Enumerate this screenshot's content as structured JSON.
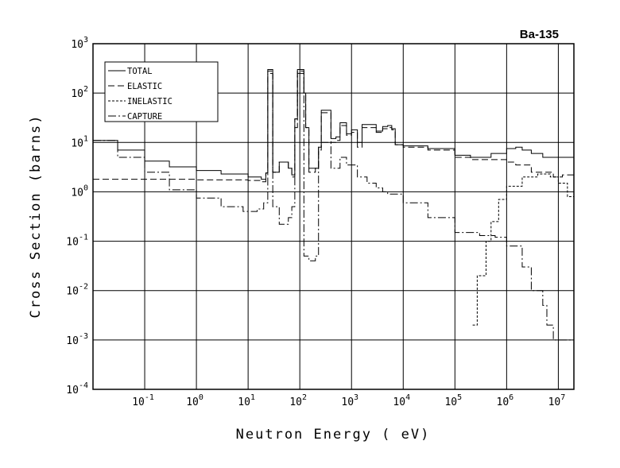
{
  "chart_data": {
    "type": "line",
    "title": "Ba-135",
    "xlabel": "Neutron Energy ( eV)",
    "ylabel": "Cross Section (barns)",
    "xscale": "log",
    "yscale": "log",
    "xlim": [
      0.01,
      20000000
    ],
    "ylim": [
      0.0001,
      1000
    ],
    "grid": true,
    "legend_position": "top-left",
    "x_ticks": [
      {
        "base": "10",
        "exp": "-1",
        "value": 0.1
      },
      {
        "base": "10",
        "exp": "0",
        "value": 1
      },
      {
        "base": "10",
        "exp": "1",
        "value": 10
      },
      {
        "base": "10",
        "exp": "2",
        "value": 100
      },
      {
        "base": "10",
        "exp": "3",
        "value": 1000
      },
      {
        "base": "10",
        "exp": "4",
        "value": 10000
      },
      {
        "base": "10",
        "exp": "5",
        "value": 100000
      },
      {
        "base": "10",
        "exp": "6",
        "value": 1000000
      },
      {
        "base": "10",
        "exp": "7",
        "value": 10000000
      }
    ],
    "y_ticks": [
      {
        "base": "10",
        "exp": "3",
        "value": 1000
      },
      {
        "base": "10",
        "exp": "2",
        "value": 100
      },
      {
        "base": "10",
        "exp": "1",
        "value": 10
      },
      {
        "base": "10",
        "exp": "0",
        "value": 1
      },
      {
        "base": "10",
        "exp": "-1",
        "value": 0.1
      },
      {
        "base": "10",
        "exp": "-2",
        "value": 0.01
      },
      {
        "base": "10",
        "exp": "-3",
        "value": 0.001
      },
      {
        "base": "10",
        "exp": "-4",
        "value": 0.0001
      }
    ],
    "series": [
      {
        "name": "TOTAL",
        "dash": "",
        "points": [
          [
            0.01,
            11
          ],
          [
            0.03,
            7
          ],
          [
            0.1,
            4.2
          ],
          [
            0.3,
            3.2
          ],
          [
            1,
            2.7
          ],
          [
            3,
            2.3
          ],
          [
            10,
            2.0
          ],
          [
            18,
            1.8
          ],
          [
            22,
            2.4
          ],
          [
            24,
            300
          ],
          [
            28,
            300
          ],
          [
            30,
            2.5
          ],
          [
            40,
            4
          ],
          [
            60,
            3
          ],
          [
            70,
            2.2
          ],
          [
            80,
            30
          ],
          [
            90,
            300
          ],
          [
            110,
            300
          ],
          [
            120,
            100
          ],
          [
            130,
            20
          ],
          [
            150,
            3
          ],
          [
            200,
            3
          ],
          [
            230,
            8
          ],
          [
            260,
            45
          ],
          [
            350,
            45
          ],
          [
            400,
            12
          ],
          [
            500,
            13
          ],
          [
            600,
            25
          ],
          [
            700,
            25
          ],
          [
            800,
            15
          ],
          [
            1000,
            18
          ],
          [
            1300,
            10
          ],
          [
            1600,
            23
          ],
          [
            2000,
            23
          ],
          [
            3000,
            17
          ],
          [
            4000,
            21
          ],
          [
            5000,
            22
          ],
          [
            6000,
            19
          ],
          [
            7000,
            9
          ],
          [
            10000,
            8.5
          ],
          [
            30000,
            7.5
          ],
          [
            100000,
            5.5
          ],
          [
            200000,
            5
          ],
          [
            500000,
            6
          ],
          [
            1000000,
            7.5
          ],
          [
            1500000,
            8
          ],
          [
            2000000,
            7
          ],
          [
            3000000,
            6
          ],
          [
            5000000,
            5
          ],
          [
            8000000,
            5
          ],
          [
            12000000,
            5
          ],
          [
            20000000,
            5.5
          ]
        ]
      },
      {
        "name": "ELASTIC",
        "dash": "8 4",
        "points": [
          [
            0.01,
            1.8
          ],
          [
            0.1,
            1.8
          ],
          [
            1,
            1.75
          ],
          [
            10,
            1.7
          ],
          [
            18,
            1.6
          ],
          [
            22,
            2.4
          ],
          [
            24,
            280
          ],
          [
            28,
            280
          ],
          [
            30,
            2.5
          ],
          [
            40,
            4
          ],
          [
            60,
            3
          ],
          [
            70,
            2.0
          ],
          [
            80,
            30
          ],
          [
            90,
            280
          ],
          [
            110,
            280
          ],
          [
            120,
            100
          ],
          [
            130,
            20
          ],
          [
            150,
            2.5
          ],
          [
            200,
            3
          ],
          [
            230,
            7
          ],
          [
            260,
            40
          ],
          [
            350,
            40
          ],
          [
            400,
            10
          ],
          [
            500,
            11
          ],
          [
            600,
            22
          ],
          [
            700,
            22
          ],
          [
            800,
            14
          ],
          [
            1000,
            16
          ],
          [
            1300,
            8
          ],
          [
            1600,
            20
          ],
          [
            2000,
            20
          ],
          [
            3000,
            16
          ],
          [
            4000,
            19
          ],
          [
            5000,
            20
          ],
          [
            6000,
            18
          ],
          [
            7000,
            9
          ],
          [
            10000,
            8
          ],
          [
            30000,
            7
          ],
          [
            100000,
            5
          ],
          [
            200000,
            4.5
          ],
          [
            500000,
            4.5
          ],
          [
            1000000,
            4
          ],
          [
            1500000,
            3.5
          ],
          [
            3000000,
            2.5
          ],
          [
            8000000,
            2
          ],
          [
            12000000,
            2.2
          ],
          [
            20000000,
            2.5
          ]
        ]
      },
      {
        "name": "INELASTIC",
        "dash": "3 2",
        "points": [
          [
            220000,
            0.002
          ],
          [
            250000,
            0.002
          ],
          [
            270000,
            0.02
          ],
          [
            400000,
            0.1
          ],
          [
            500000,
            0.25
          ],
          [
            700000,
            0.7
          ],
          [
            1000000,
            1.3
          ],
          [
            2000000,
            2
          ],
          [
            4000000,
            2.3
          ],
          [
            7000000,
            2
          ],
          [
            10000000,
            1.5
          ],
          [
            15000000,
            0.8
          ],
          [
            20000000,
            0.5
          ]
        ]
      },
      {
        "name": "CAPTURE",
        "dash": "10 3 2 3",
        "points": [
          [
            0.01,
            11
          ],
          [
            0.03,
            5
          ],
          [
            0.1,
            2.5
          ],
          [
            0.3,
            1.1
          ],
          [
            1,
            0.75
          ],
          [
            3,
            0.5
          ],
          [
            8,
            0.4
          ],
          [
            15,
            0.45
          ],
          [
            20,
            0.6
          ],
          [
            24,
            250
          ],
          [
            28,
            250
          ],
          [
            30,
            0.5
          ],
          [
            40,
            0.22
          ],
          [
            60,
            0.3
          ],
          [
            70,
            0.5
          ],
          [
            80,
            20
          ],
          [
            90,
            250
          ],
          [
            110,
            250
          ],
          [
            120,
            0.05
          ],
          [
            150,
            0.04
          ],
          [
            200,
            0.05
          ],
          [
            230,
            8
          ],
          [
            260,
            10
          ],
          [
            350,
            10
          ],
          [
            400,
            3
          ],
          [
            500,
            3
          ],
          [
            600,
            5
          ],
          [
            700,
            5
          ],
          [
            800,
            3.5
          ],
          [
            1000,
            3.5
          ],
          [
            1300,
            2
          ],
          [
            1600,
            2
          ],
          [
            2000,
            1.5
          ],
          [
            3000,
            1.2
          ],
          [
            4000,
            1
          ],
          [
            5000,
            0.9
          ],
          [
            10000,
            0.6
          ],
          [
            30000,
            0.3
          ],
          [
            100000,
            0.15
          ],
          [
            300000,
            0.13
          ],
          [
            600000,
            0.12
          ],
          [
            1000000,
            0.08
          ],
          [
            2000000,
            0.03
          ],
          [
            3000000,
            0.01
          ],
          [
            5000000,
            0.005
          ],
          [
            6000000,
            0.002
          ],
          [
            8000000,
            0.001
          ],
          [
            10000000,
            0.001
          ],
          [
            20000000,
            0.001
          ]
        ]
      }
    ]
  }
}
